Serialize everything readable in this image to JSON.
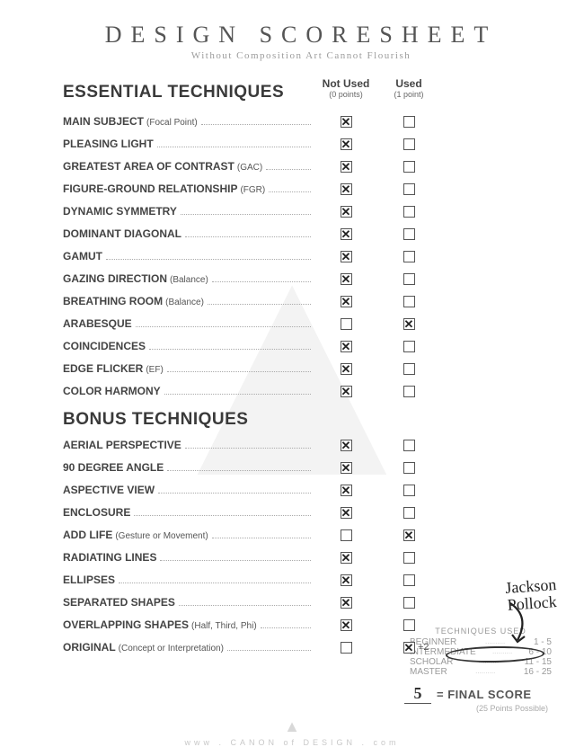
{
  "title": "DESIGN SCORESHEET",
  "subtitle": "Without Composition Art Cannot Flourish",
  "columns": {
    "not_used": {
      "label": "Not Used",
      "sub": "(0 points)"
    },
    "used": {
      "label": "Used",
      "sub": "(1 point)"
    }
  },
  "sections": {
    "essential": "ESSENTIAL TECHNIQUES",
    "bonus": "BONUS TECHNIQUES"
  },
  "essential": [
    {
      "label": "MAIN SUBJECT",
      "note": "(Focal Point)",
      "not_used": true,
      "used": false
    },
    {
      "label": "PLEASING LIGHT",
      "note": "",
      "not_used": true,
      "used": false
    },
    {
      "label": "GREATEST AREA OF CONTRAST",
      "note": "(GAC)",
      "not_used": true,
      "used": false
    },
    {
      "label": "FIGURE-GROUND RELATIONSHIP",
      "note": "(FGR)",
      "not_used": true,
      "used": false
    },
    {
      "label": "DYNAMIC SYMMETRY",
      "note": "",
      "not_used": true,
      "used": false
    },
    {
      "label": "DOMINANT DIAGONAL",
      "note": "",
      "not_used": true,
      "used": false
    },
    {
      "label": "GAMUT",
      "note": "",
      "not_used": true,
      "used": false
    },
    {
      "label": "GAZING DIRECTION",
      "note": "(Balance)",
      "not_used": true,
      "used": false
    },
    {
      "label": "BREATHING ROOM",
      "note": "(Balance)",
      "not_used": true,
      "used": false
    },
    {
      "label": "ARABESQUE",
      "note": "",
      "not_used": false,
      "used": true
    },
    {
      "label": "COINCIDENCES",
      "note": "",
      "not_used": true,
      "used": false
    },
    {
      "label": "EDGE FLICKER",
      "note": "(EF)",
      "not_used": true,
      "used": false
    },
    {
      "label": "COLOR HARMONY",
      "note": "",
      "not_used": true,
      "used": false
    }
  ],
  "bonus": [
    {
      "label": "AERIAL PERSPECTIVE",
      "note": "",
      "not_used": true,
      "used": false
    },
    {
      "label": "90 DEGREE ANGLE",
      "note": "",
      "not_used": true,
      "used": false
    },
    {
      "label": "ASPECTIVE VIEW",
      "note": "",
      "not_used": true,
      "used": false
    },
    {
      "label": "ENCLOSURE",
      "note": "",
      "not_used": true,
      "used": false
    },
    {
      "label": "ADD LIFE",
      "note": "(Gesture or Movement)",
      "not_used": false,
      "used": true
    },
    {
      "label": "RADIATING LINES",
      "note": "",
      "not_used": true,
      "used": false
    },
    {
      "label": "ELLIPSES",
      "note": "",
      "not_used": true,
      "used": false
    },
    {
      "label": "SEPARATED SHAPES",
      "note": "",
      "not_used": true,
      "used": false
    },
    {
      "label": "OVERLAPPING SHAPES",
      "note": "(Half, Third, Phi)",
      "not_used": true,
      "used": false
    },
    {
      "label": "ORIGINAL",
      "note": "(Concept or Interpretation)",
      "not_used": false,
      "used": true,
      "suffix": "+2"
    }
  ],
  "ranks": {
    "head": "TECHNIQUES USED",
    "levels": [
      {
        "name": "BEGINNER",
        "range": "1 - 5",
        "circled": true
      },
      {
        "name": "INTERMEDIATE",
        "range": "6 - 10",
        "circled": false
      },
      {
        "name": "SCHOLAR",
        "range": "11 - 15",
        "circled": false
      },
      {
        "name": "MASTER",
        "range": "16 - 25",
        "circled": false
      }
    ]
  },
  "final": {
    "value": "5",
    "label": "= FINAL SCORE",
    "sub": "(25 Points Possible)"
  },
  "handwriting": "Jackson\nPollock",
  "footer": "www . CANON of DESIGN . com",
  "colors": {
    "text": "#3a3a3a",
    "muted": "#9c9c9c",
    "box_border": "#555555",
    "background": "#ffffff",
    "watermark": "#f3f3f3"
  }
}
